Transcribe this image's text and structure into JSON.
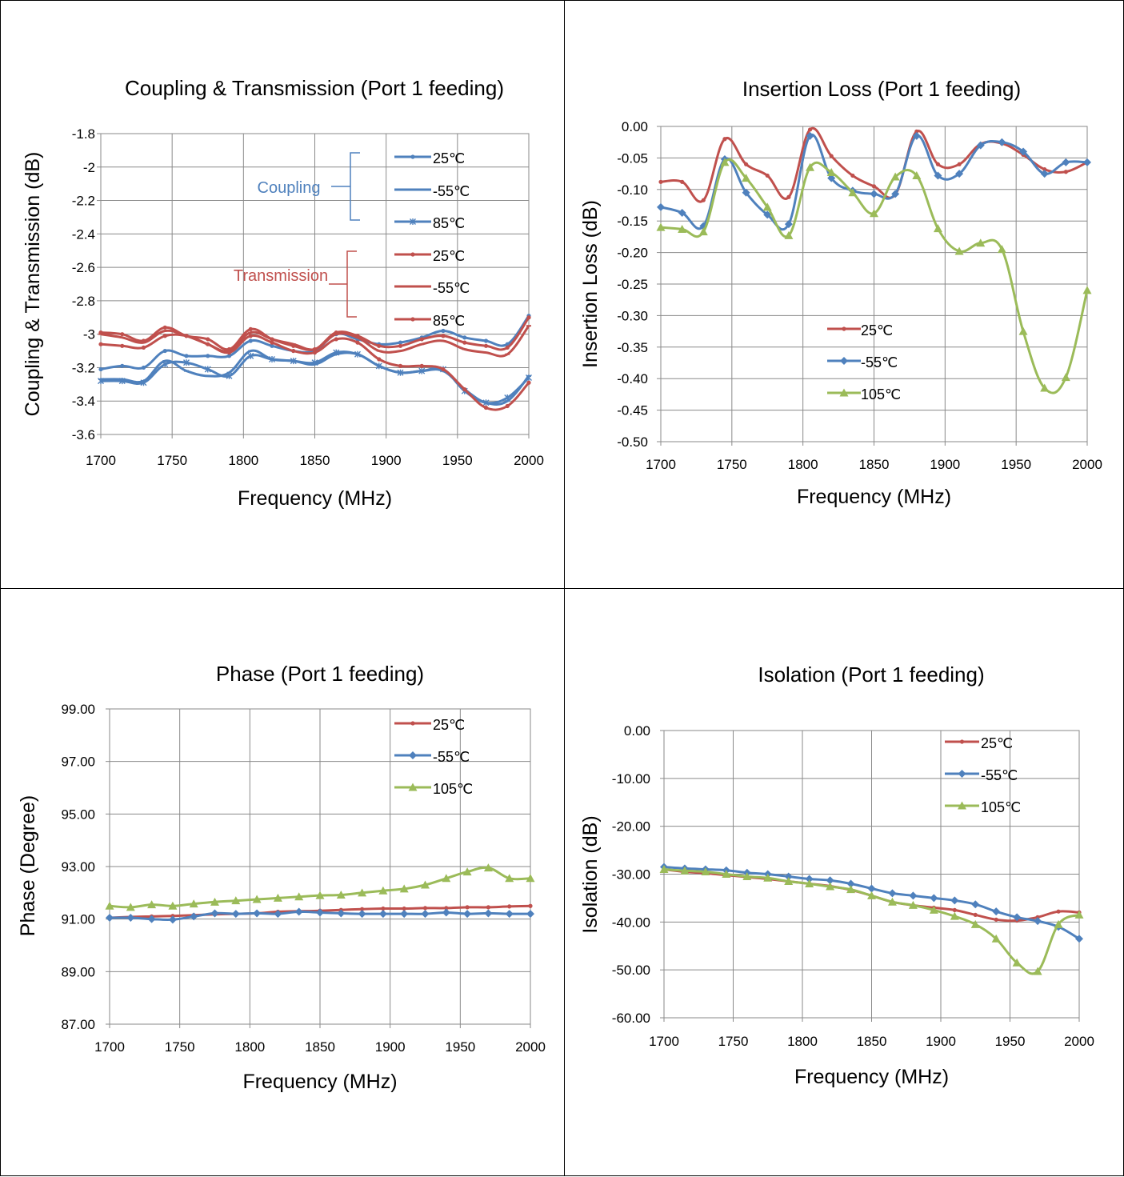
{
  "colors": {
    "red": "#C0504D",
    "blue": "#4F81BD",
    "green": "#9BBB59"
  },
  "chart_data": [
    {
      "type": "line",
      "title": "Coupling & Transmission (Port 1 feeding)",
      "xlabel": "Frequency (MHz)",
      "ylabel": "Coupling & Transmission (dB)",
      "xlim": [
        1700,
        2000
      ],
      "ylim": [
        -3.6,
        -1.8
      ],
      "xticks": [
        "1700",
        "1750",
        "1800",
        "1850",
        "1900",
        "1950",
        "2000"
      ],
      "yticks": [
        "-1.8",
        "-2",
        "-2.2",
        "-2.4",
        "-2.6",
        "-2.8",
        "-3",
        "-3.2",
        "-3.4",
        "-3.6"
      ],
      "grid": true,
      "legend_position": "top-right",
      "group_labels": [
        "Coupling",
        "Transmission"
      ],
      "x": [
        1700,
        1715,
        1730,
        1745,
        1760,
        1775,
        1790,
        1805,
        1820,
        1835,
        1850,
        1865,
        1880,
        1895,
        1910,
        1925,
        1940,
        1955,
        1970,
        1985,
        2000
      ],
      "series": [
        {
          "name": "25℃",
          "group": "Coupling",
          "color": "blue",
          "values": [
            -3.21,
            -3.19,
            -3.2,
            -3.1,
            -3.13,
            -3.13,
            -3.13,
            -3.04,
            -3.07,
            -3.1,
            -3.1,
            -3.0,
            -3.03,
            -3.06,
            -3.05,
            -3.02,
            -2.98,
            -3.02,
            -3.04,
            -3.06,
            -2.89
          ]
        },
        {
          "name": "-55℃",
          "group": "Coupling",
          "color": "blue",
          "values": [
            -3.27,
            -3.27,
            -3.28,
            -3.16,
            -3.22,
            -3.25,
            -3.23,
            -3.1,
            -3.15,
            -3.16,
            -3.18,
            -3.12,
            -3.12,
            -3.19,
            -3.23,
            -3.22,
            -3.22,
            -3.33,
            -3.41,
            -3.4,
            -3.25
          ]
        },
        {
          "name": "85℃",
          "group": "Coupling",
          "color": "blue",
          "values": [
            -3.28,
            -3.28,
            -3.29,
            -3.18,
            -3.17,
            -3.21,
            -3.25,
            -3.13,
            -3.15,
            -3.16,
            -3.17,
            -3.11,
            -3.12,
            -3.19,
            -3.23,
            -3.22,
            -3.21,
            -3.34,
            -3.41,
            -3.38,
            -3.26
          ]
        },
        {
          "name": "25℃",
          "group": "Transmission",
          "color": "red",
          "values": [
            -2.99,
            -3.0,
            -3.04,
            -2.96,
            -3.01,
            -3.03,
            -3.09,
            -2.97,
            -3.03,
            -3.07,
            -3.09,
            -2.99,
            -3.01,
            -3.07,
            -3.07,
            -3.03,
            -3.01,
            -3.05,
            -3.07,
            -3.08,
            -2.9
          ]
        },
        {
          "name": "-55℃",
          "group": "Transmission",
          "color": "red",
          "values": [
            -3.0,
            -3.02,
            -3.05,
            -2.98,
            -3.01,
            -3.06,
            -3.1,
            -2.99,
            -3.03,
            -3.06,
            -3.09,
            -3.0,
            -3.02,
            -3.1,
            -3.1,
            -3.06,
            -3.04,
            -3.09,
            -3.11,
            -3.12,
            -2.95
          ]
        },
        {
          "name": "85℃",
          "group": "Transmission",
          "color": "red",
          "values": [
            -3.06,
            -3.07,
            -3.08,
            -3.01,
            -3.01,
            -3.06,
            -3.11,
            -3.01,
            -3.05,
            -3.1,
            -3.11,
            -3.03,
            -3.05,
            -3.15,
            -3.19,
            -3.19,
            -3.21,
            -3.33,
            -3.44,
            -3.43,
            -3.29
          ]
        }
      ]
    },
    {
      "type": "line",
      "title": "Insertion Loss (Port 1 feeding)",
      "xlabel": "Frequency (MHz)",
      "ylabel": "Insertion Loss (dB)",
      "xlim": [
        1700,
        2000
      ],
      "ylim": [
        -0.5,
        0
      ],
      "xticks": [
        "1700",
        "1750",
        "1800",
        "1850",
        "1900",
        "1950",
        "2000"
      ],
      "yticks": [
        "0.00",
        "-0.05",
        "-0.10",
        "-0.15",
        "-0.20",
        "-0.25",
        "-0.30",
        "-0.35",
        "-0.40",
        "-0.45",
        "-0.50"
      ],
      "grid": true,
      "legend_position": "bottom-center",
      "x": [
        1700,
        1715,
        1730,
        1745,
        1760,
        1775,
        1790,
        1805,
        1820,
        1835,
        1850,
        1865,
        1880,
        1895,
        1910,
        1925,
        1940,
        1955,
        1970,
        1985,
        2000
      ],
      "series": [
        {
          "name": "25℃",
          "color": "red",
          "values": [
            -0.088,
            -0.088,
            -0.117,
            -0.02,
            -0.06,
            -0.078,
            -0.112,
            -0.005,
            -0.047,
            -0.078,
            -0.095,
            -0.108,
            -0.008,
            -0.06,
            -0.06,
            -0.028,
            -0.027,
            -0.045,
            -0.068,
            -0.072,
            -0.057
          ]
        },
        {
          "name": "-55℃",
          "color": "blue",
          "values": [
            -0.128,
            -0.137,
            -0.158,
            -0.052,
            -0.105,
            -0.14,
            -0.155,
            -0.015,
            -0.082,
            -0.102,
            -0.107,
            -0.107,
            -0.015,
            -0.078,
            -0.075,
            -0.03,
            -0.025,
            -0.04,
            -0.075,
            -0.057,
            -0.057
          ]
        },
        {
          "name": "105℃",
          "color": "green",
          "values": [
            -0.16,
            -0.163,
            -0.167,
            -0.057,
            -0.082,
            -0.128,
            -0.173,
            -0.065,
            -0.073,
            -0.105,
            -0.138,
            -0.08,
            -0.078,
            -0.162,
            -0.198,
            -0.185,
            -0.195,
            -0.325,
            -0.415,
            -0.398,
            -0.26
          ]
        }
      ]
    },
    {
      "type": "line",
      "title": "Phase (Port 1 feeding)",
      "xlabel": "Frequency (MHz)",
      "ylabel": "Phase (Degree)",
      "xlim": [
        1700,
        2000
      ],
      "ylim": [
        87,
        99
      ],
      "xticks": [
        "1700",
        "1750",
        "1800",
        "1850",
        "1900",
        "1950",
        "2000"
      ],
      "yticks": [
        "99.00",
        "97.00",
        "95.00",
        "93.00",
        "91.00",
        "89.00",
        "87.00"
      ],
      "grid": true,
      "legend_position": "top-right",
      "x": [
        1700,
        1715,
        1730,
        1745,
        1760,
        1775,
        1790,
        1805,
        1820,
        1835,
        1850,
        1865,
        1880,
        1895,
        1910,
        1925,
        1940,
        1955,
        1970,
        1985,
        2000
      ],
      "series": [
        {
          "name": "25℃",
          "color": "red",
          "values": [
            91.05,
            91.08,
            91.1,
            91.12,
            91.15,
            91.18,
            91.2,
            91.22,
            91.28,
            91.3,
            91.32,
            91.35,
            91.38,
            91.4,
            91.4,
            91.42,
            91.42,
            91.45,
            91.45,
            91.48,
            91.5
          ]
        },
        {
          "name": "-55℃",
          "color": "blue",
          "values": [
            91.05,
            91.05,
            91.0,
            90.98,
            91.1,
            91.22,
            91.2,
            91.22,
            91.2,
            91.28,
            91.25,
            91.22,
            91.2,
            91.2,
            91.2,
            91.2,
            91.25,
            91.2,
            91.22,
            91.2,
            91.2
          ]
        },
        {
          "name": "105℃",
          "color": "green",
          "values": [
            91.5,
            91.45,
            91.55,
            91.5,
            91.58,
            91.65,
            91.7,
            91.75,
            91.8,
            91.85,
            91.9,
            91.92,
            92.0,
            92.08,
            92.15,
            92.3,
            92.55,
            92.8,
            92.95,
            92.55,
            92.55
          ]
        }
      ]
    },
    {
      "type": "line",
      "title": "Isolation (Port 1 feeding)",
      "xlabel": "Frequency (MHz)",
      "ylabel": "Isolation (dB)",
      "xlim": [
        1700,
        2000
      ],
      "ylim": [
        -60,
        0
      ],
      "xticks": [
        "1700",
        "1750",
        "1800",
        "1850",
        "1900",
        "1950",
        "2000"
      ],
      "yticks": [
        "0.00",
        "-10.00",
        "-20.00",
        "-30.00",
        "-40.00",
        "-50.00",
        "-60.00"
      ],
      "grid": true,
      "legend_position": "top-right",
      "x": [
        1700,
        1715,
        1730,
        1745,
        1760,
        1775,
        1790,
        1805,
        1820,
        1835,
        1850,
        1865,
        1880,
        1895,
        1910,
        1925,
        1940,
        1955,
        1970,
        1985,
        2000
      ],
      "series": [
        {
          "name": "25℃",
          "color": "red",
          "values": [
            -29.0,
            -29.5,
            -29.8,
            -30.2,
            -30.6,
            -31.0,
            -31.5,
            -32.0,
            -32.5,
            -33.3,
            -34.5,
            -35.8,
            -36.5,
            -37.0,
            -37.5,
            -38.5,
            -39.5,
            -39.7,
            -39.0,
            -37.8,
            -38.0
          ]
        },
        {
          "name": "-55℃",
          "color": "blue",
          "values": [
            -28.5,
            -28.8,
            -29.0,
            -29.2,
            -29.7,
            -30.0,
            -30.5,
            -31.0,
            -31.3,
            -32.0,
            -33.0,
            -34.0,
            -34.5,
            -35.0,
            -35.5,
            -36.3,
            -37.8,
            -39.0,
            -39.8,
            -41.0,
            -43.5
          ]
        },
        {
          "name": "105℃",
          "color": "green",
          "values": [
            -29.0,
            -29.3,
            -29.5,
            -30.0,
            -30.5,
            -30.8,
            -31.5,
            -32.0,
            -32.6,
            -33.2,
            -34.5,
            -35.8,
            -36.5,
            -37.5,
            -38.8,
            -40.5,
            -43.5,
            -48.5,
            -50.3,
            -40.5,
            -38.5
          ]
        }
      ]
    }
  ]
}
